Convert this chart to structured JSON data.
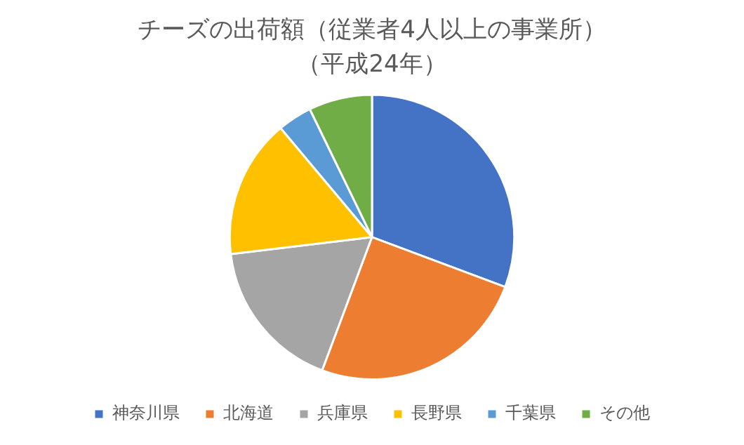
{
  "chart_data": {
    "type": "pie",
    "title": "チーズの出荷額（従業者4人以上の事業所）",
    "subtitle": "（平成24年）",
    "categories": [
      "神奈川県",
      "北海道",
      "兵庫県",
      "長野県",
      "千葉県",
      "その他"
    ],
    "values": [
      30.7,
      25,
      17.4,
      15.8,
      3.9,
      7.2
    ],
    "colors": [
      "#4472c4",
      "#ed7d31",
      "#a5a5a5",
      "#ffc000",
      "#5b9bd5",
      "#70ad47"
    ],
    "legend": "bottom"
  }
}
